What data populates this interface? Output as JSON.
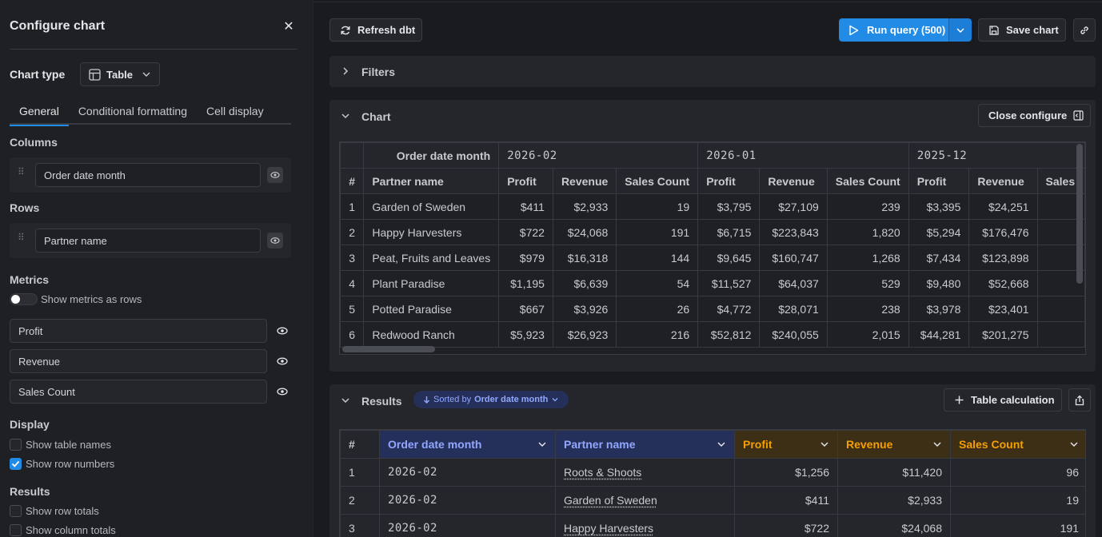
{
  "sidebar": {
    "title": "Configure chart",
    "chart_type_label": "Chart type",
    "chart_type_value": "Table",
    "tabs": [
      {
        "label": "General"
      },
      {
        "label": "Conditional formatting"
      },
      {
        "label": "Cell display"
      }
    ],
    "columns_label": "Columns",
    "columns_field": "Order date month",
    "rows_label": "Rows",
    "rows_field": "Partner name",
    "metrics_label": "Metrics",
    "show_metrics_as_rows": "Show metrics as rows",
    "metrics": [
      "Profit",
      "Revenue",
      "Sales Count"
    ],
    "display_label": "Display",
    "show_table_names": "Show table names",
    "show_row_numbers": "Show row numbers",
    "results_label": "Results",
    "show_row_totals": "Show row totals",
    "show_column_totals": "Show column totals"
  },
  "toolbar": {
    "refresh": "Refresh dbt",
    "run_query": "Run query (500)",
    "save_chart": "Save chart"
  },
  "filters_panel": {
    "title": "Filters"
  },
  "chart_panel": {
    "title": "Chart",
    "close_configure": "Close configure"
  },
  "pivot": {
    "corner_header": "Order date month",
    "row_header_index": "#",
    "row_header_dim": "Partner name",
    "months": [
      "2026-02",
      "2026-01",
      "2025-12"
    ],
    "metric_headers": [
      "Profit",
      "Revenue",
      "Sales Count"
    ],
    "truncated_header": "Sales",
    "rows": [
      {
        "n": "1",
        "name": "Garden of Sweden",
        "v": [
          "$411",
          "$2,933",
          "19",
          "$3,795",
          "$27,109",
          "239",
          "$3,395",
          "$24,251"
        ]
      },
      {
        "n": "2",
        "name": "Happy Harvesters",
        "v": [
          "$722",
          "$24,068",
          "191",
          "$6,715",
          "$223,843",
          "1,820",
          "$5,294",
          "$176,476"
        ]
      },
      {
        "n": "3",
        "name": "Peat, Fruits and Leaves",
        "v": [
          "$979",
          "$16,318",
          "144",
          "$9,645",
          "$160,747",
          "1,268",
          "$7,434",
          "$123,898"
        ]
      },
      {
        "n": "4",
        "name": "Plant Paradise",
        "v": [
          "$1,195",
          "$6,639",
          "54",
          "$11,527",
          "$64,037",
          "529",
          "$9,480",
          "$52,668"
        ]
      },
      {
        "n": "5",
        "name": "Potted Paradise",
        "v": [
          "$667",
          "$3,926",
          "26",
          "$4,772",
          "$28,071",
          "238",
          "$3,978",
          "$23,401"
        ]
      },
      {
        "n": "6",
        "name": "Redwood Ranch",
        "v": [
          "$5,923",
          "$26,923",
          "216",
          "$52,812",
          "$240,055",
          "2,015",
          "$44,281",
          "$201,275"
        ]
      }
    ]
  },
  "results_panel": {
    "title": "Results",
    "sorted_by_prefix": "Sorted by",
    "sorted_by_field": "Order date month",
    "table_calculation": "Table calculation",
    "headers": [
      "#",
      "Order date month",
      "Partner name",
      "Profit",
      "Revenue",
      "Sales Count"
    ],
    "rows": [
      {
        "n": "1",
        "month": "2026-02",
        "partner": "Roots & Shoots",
        "profit": "$1,256",
        "revenue": "$11,420",
        "count": "96"
      },
      {
        "n": "2",
        "month": "2026-02",
        "partner": "Garden of Sweden",
        "profit": "$411",
        "revenue": "$2,933",
        "count": "19"
      },
      {
        "n": "3",
        "month": "2026-02",
        "partner": "Happy Harvesters",
        "profit": "$722",
        "revenue": "$24,068",
        "count": "191"
      }
    ]
  },
  "colors": {
    "accent": "#228be6",
    "dimension_header": "#91a7ff",
    "metric_header": "#f59f00"
  }
}
